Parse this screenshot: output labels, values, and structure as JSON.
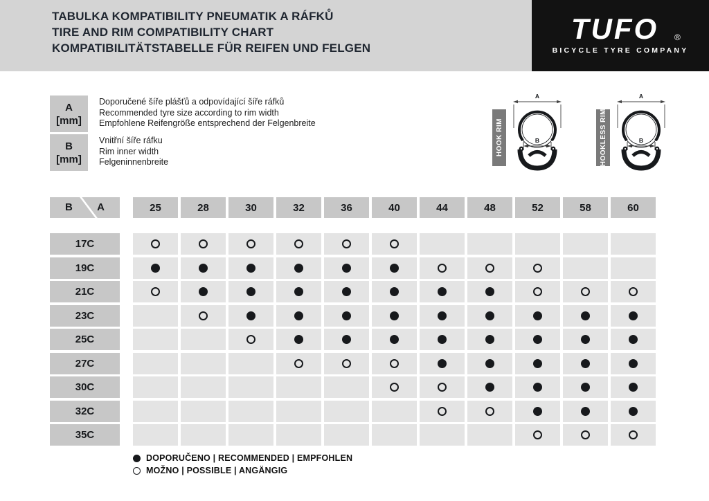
{
  "header": {
    "title_lines": [
      "TABULKA KOMPATIBILITY PNEUMATIK A RÁFKŮ",
      "TIRE AND RIM COMPATIBILITY CHART",
      "KOMPATIBILITÄTSTABELLE FÜR REIFEN UND FELGEN"
    ],
    "logo": {
      "brand": "TUFO",
      "registered": "®",
      "tagline": "BICYCLE TYRE COMPANY"
    }
  },
  "size_legend": [
    {
      "letter": "A",
      "unit": "[mm]",
      "lines": [
        "Doporučené šíře plášťů a odpovídající šíře ráfků",
        "Recommended tyre size according to rim width",
        "Empfohlene Reifengröße entsprechend der Felgenbreite"
      ]
    },
    {
      "letter": "B",
      "unit": "[mm]",
      "lines": [
        "Vnitřní šíře ráfku",
        "Rim inner width",
        "Felgeninnenbreite"
      ]
    }
  ],
  "diagrams": [
    {
      "label": "HOOK RIM",
      "dim_top": "A",
      "dim_inner": "B"
    },
    {
      "label": "HOOKLESS RIM",
      "dim_top": "A",
      "dim_inner": "B"
    }
  ],
  "chart_data": {
    "type": "table",
    "title": "TIRE AND RIM COMPATIBILITY CHART",
    "corner": {
      "row_axis": "B",
      "col_axis": "A"
    },
    "col_axis_meaning": "A [mm] recommended tyre size according to rim width",
    "row_axis_meaning": "B [mm] rim inner width",
    "columns": [
      "25",
      "28",
      "30",
      "32",
      "36",
      "40",
      "44",
      "48",
      "52",
      "58",
      "60"
    ],
    "rows": [
      "17C",
      "19C",
      "21C",
      "23C",
      "25C",
      "27C",
      "30C",
      "32C",
      "35C"
    ],
    "cell_legend": {
      "R": "recommended (filled dot)",
      "P": "possible (open dot)",
      "": "not compatible (empty)"
    },
    "matrix": [
      [
        "P",
        "P",
        "P",
        "P",
        "P",
        "P",
        "",
        "",
        "",
        "",
        ""
      ],
      [
        "R",
        "R",
        "R",
        "R",
        "R",
        "R",
        "P",
        "P",
        "P",
        "",
        ""
      ],
      [
        "P",
        "R",
        "R",
        "R",
        "R",
        "R",
        "R",
        "R",
        "P",
        "P",
        "P"
      ],
      [
        "",
        "P",
        "R",
        "R",
        "R",
        "R",
        "R",
        "R",
        "R",
        "R",
        "R"
      ],
      [
        "",
        "",
        "P",
        "R",
        "R",
        "R",
        "R",
        "R",
        "R",
        "R",
        "R"
      ],
      [
        "",
        "",
        "",
        "P",
        "P",
        "P",
        "R",
        "R",
        "R",
        "R",
        "R"
      ],
      [
        "",
        "",
        "",
        "",
        "",
        "P",
        "P",
        "R",
        "R",
        "R",
        "R"
      ],
      [
        "",
        "",
        "",
        "",
        "",
        "",
        "P",
        "P",
        "R",
        "R",
        "R"
      ],
      [
        "",
        "",
        "",
        "",
        "",
        "",
        "",
        "",
        "P",
        "P",
        "P"
      ]
    ]
  },
  "bottom_legend": [
    {
      "symbol": "recommended",
      "text": "DOPORUČENO | RECOMMENDED | EMPFOHLEN"
    },
    {
      "symbol": "possible",
      "text": "MOŽNO | POSSIBLE | ANGÄNGIG"
    }
  ],
  "colors": {
    "band": "#d4d4d4",
    "header_cell": "#c7c7c7",
    "data_cell": "#e4e4e4",
    "label_bar": "#7a7a7a",
    "ink": "#17191c",
    "title": "#1f2630",
    "logo_bg": "#121212"
  }
}
